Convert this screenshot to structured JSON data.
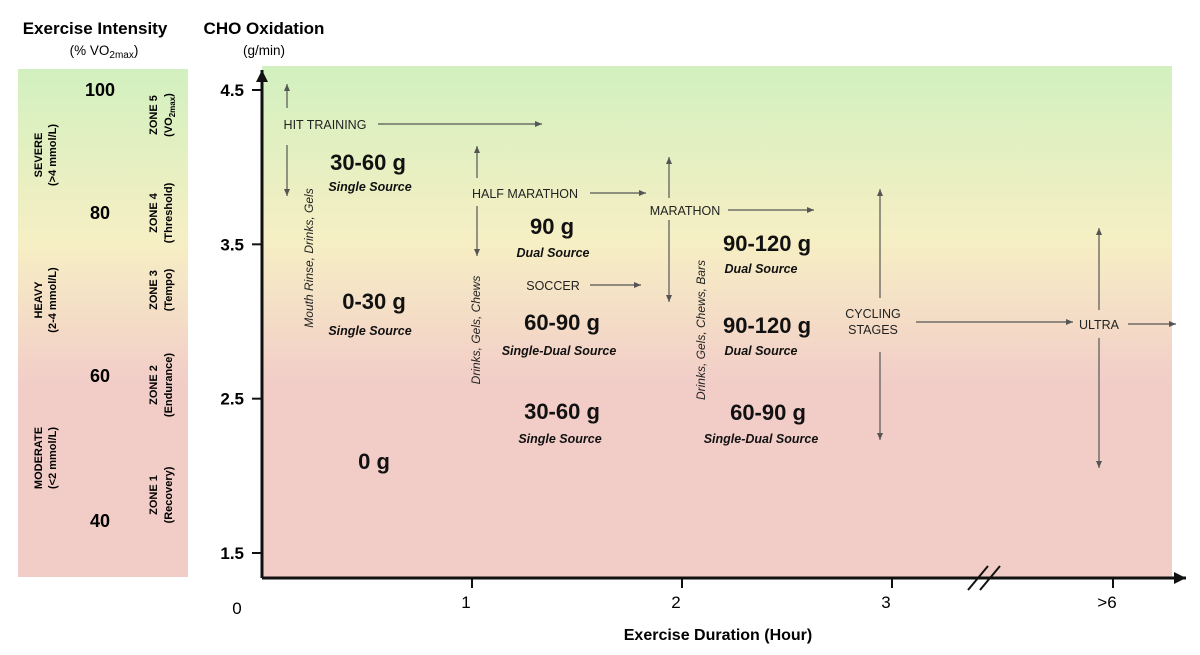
{
  "left_panel": {
    "title": "Exercise Intensity",
    "subtitle_prefix": "(% VO",
    "subtitle_sub": "2max",
    "subtitle_suffix": ")",
    "levels": [
      {
        "value": 100,
        "label": "100"
      },
      {
        "value": 80,
        "label": "80"
      },
      {
        "value": 60,
        "label": "60"
      },
      {
        "value": 40,
        "label": "40"
      }
    ],
    "domains": [
      {
        "line1": "SEVERE",
        "line2": "(>4 mmol/L)"
      },
      {
        "line1": "HEAVY",
        "line2": "(2-4 mmol/L)"
      },
      {
        "line1": "MODERATE",
        "line2": "(<2 mmol/L)"
      }
    ],
    "zones": [
      {
        "line1": "ZONE 5",
        "line2_prefix": "(VO",
        "line2_sub": "2max",
        "line2_suffix": ")"
      },
      {
        "line1": "ZONE 4",
        "line2": "(Threshold)"
      },
      {
        "line1": "ZONE 3",
        "line2": "(Tempo)"
      },
      {
        "line1": "ZONE 2",
        "line2": "(Endurance)"
      },
      {
        "line1": "ZONE 1",
        "line2": "(Recovery)"
      }
    ]
  },
  "colors": {
    "green": "#d2f0bf",
    "yellow": "#f6efc4",
    "pink": "#f2cdc8",
    "axis": "#111111",
    "arrow": "#555555"
  },
  "chart_data": {
    "type": "annotated-axes",
    "ylabel_title": "CHO Oxidation",
    "ylabel_units": "(g/min)",
    "xlabel": "Exercise Duration (Hour)",
    "origin_label": "0",
    "ylim": [
      1.5,
      4.5
    ],
    "y_ticks": [
      {
        "value": 4.5,
        "label": "4.5"
      },
      {
        "value": 3.5,
        "label": "3.5"
      },
      {
        "value": 2.5,
        "label": "2.5"
      },
      {
        "value": 1.5,
        "label": "1.5"
      }
    ],
    "x_ticks": [
      {
        "value": 1,
        "label": "1"
      },
      {
        "value": 2,
        "label": "2"
      },
      {
        "value": 3,
        "label": "3"
      },
      {
        "value": 4,
        "label": ">6"
      }
    ],
    "axis_break_at": 3.5,
    "events": [
      "HIT TRAINING",
      "HALF MARATHON",
      "SOCCER",
      "MARATHON",
      "CYCLING",
      "STAGES",
      "ULTRA"
    ],
    "vertical_notes": [
      "Mouth Rinse, Drinks, Gels",
      "Drinks, Gels, Chews",
      "Drinks, Gels, Chews, Bars"
    ],
    "recommendations": [
      {
        "amount": "30-60 g",
        "source": "Single Source"
      },
      {
        "amount": "0-30 g",
        "source": "Single Source"
      },
      {
        "amount": "0 g",
        "source": ""
      },
      {
        "amount": "90 g",
        "source": "Dual Source"
      },
      {
        "amount": "60-90 g",
        "source": "Single-Dual Source"
      },
      {
        "amount": "30-60 g",
        "source": "Single Source"
      },
      {
        "amount": "90-120 g",
        "source": "Dual Source"
      },
      {
        "amount": "90-120 g",
        "source": "Dual Source"
      },
      {
        "amount": "60-90 g",
        "source": "Single-Dual Source"
      }
    ]
  }
}
